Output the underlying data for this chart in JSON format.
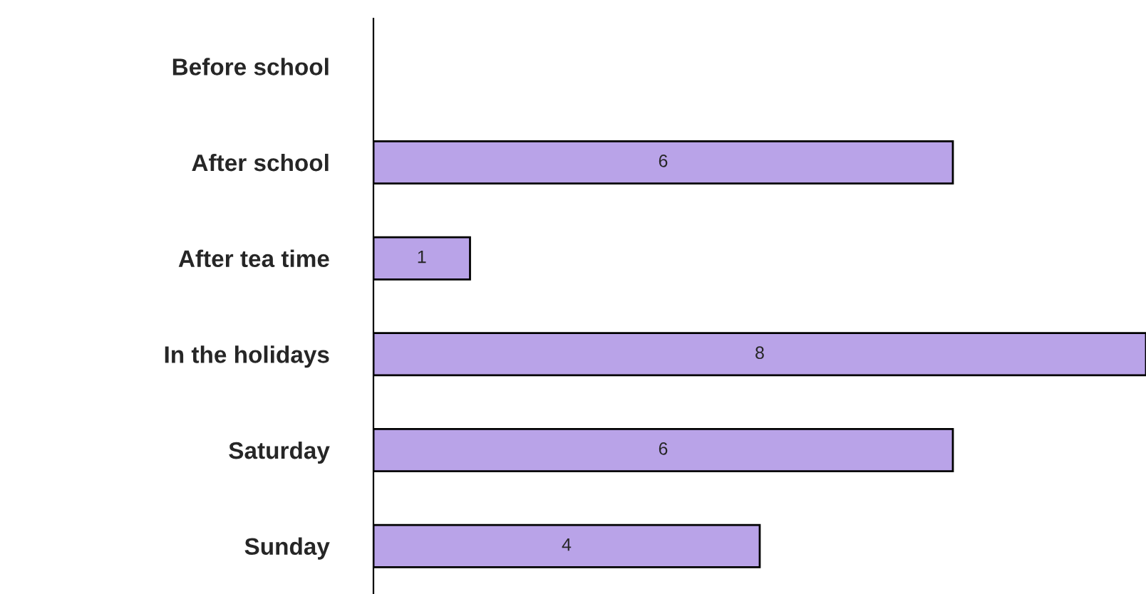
{
  "chart_data": {
    "type": "bar",
    "orientation": "horizontal",
    "categories": [
      "Before school",
      "After school",
      "After tea time",
      "In the holidays",
      "Saturday",
      "Sunday"
    ],
    "values": [
      0,
      6,
      1,
      8,
      6,
      4
    ],
    "value_labels": [
      null,
      "6",
      "1",
      "8",
      "6",
      "4"
    ],
    "color": "#b9a3e8",
    "grid": false,
    "legend": false
  }
}
